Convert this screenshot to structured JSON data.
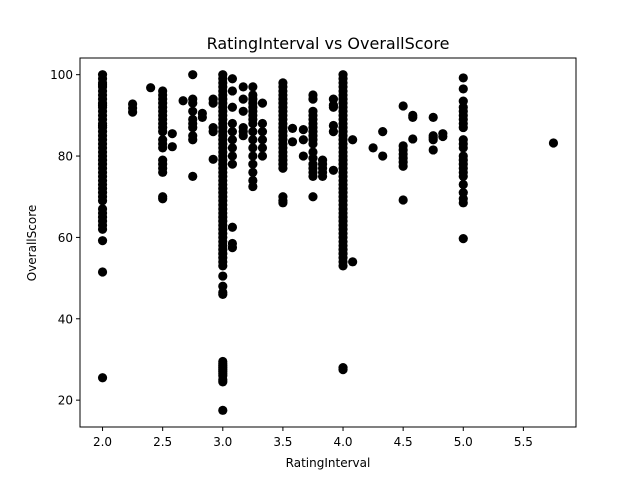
{
  "chart_data": {
    "type": "scatter",
    "title": "RatingInterval vs OverallScore",
    "xlabel": "RatingInterval",
    "ylabel": "OverallScore",
    "xlim": [
      1.8125,
      5.9375
    ],
    "ylim": [
      13.4,
      104.1
    ],
    "xticks": [
      2.0,
      2.5,
      3.0,
      3.5,
      4.0,
      4.5,
      5.0,
      5.5
    ],
    "xtick_labels": [
      "2.0",
      "2.5",
      "3.0",
      "3.5",
      "4.0",
      "4.5",
      "5.0",
      "5.5"
    ],
    "yticks": [
      20,
      40,
      60,
      80,
      100
    ],
    "ytick_labels": [
      "20",
      "40",
      "60",
      "80",
      "100"
    ],
    "grid": false,
    "legend": "none",
    "marker_color": "#000000",
    "points": [
      [
        2.0,
        100
      ],
      [
        2.0,
        99
      ],
      [
        2.0,
        98
      ],
      [
        2.0,
        97.5
      ],
      [
        2.0,
        97
      ],
      [
        2.0,
        96
      ],
      [
        2.0,
        95
      ],
      [
        2.0,
        94
      ],
      [
        2.0,
        93
      ],
      [
        2.0,
        92.5
      ],
      [
        2.0,
        92
      ],
      [
        2.0,
        91
      ],
      [
        2.0,
        90
      ],
      [
        2.0,
        89
      ],
      [
        2.0,
        88
      ],
      [
        2.0,
        87.5
      ],
      [
        2.0,
        87
      ],
      [
        2.0,
        86
      ],
      [
        2.0,
        85
      ],
      [
        2.0,
        84
      ],
      [
        2.0,
        83
      ],
      [
        2.0,
        82
      ],
      [
        2.0,
        81
      ],
      [
        2.0,
        80
      ],
      [
        2.0,
        79
      ],
      [
        2.0,
        78
      ],
      [
        2.0,
        77
      ],
      [
        2.0,
        76
      ],
      [
        2.0,
        75
      ],
      [
        2.0,
        74
      ],
      [
        2.0,
        73
      ],
      [
        2.0,
        72
      ],
      [
        2.0,
        71
      ],
      [
        2.0,
        70
      ],
      [
        2.0,
        69
      ],
      [
        2.0,
        67
      ],
      [
        2.0,
        66
      ],
      [
        2.0,
        65
      ],
      [
        2.0,
        64
      ],
      [
        2.0,
        63
      ],
      [
        2.0,
        62
      ],
      [
        2.0,
        59.2
      ],
      [
        2.0,
        51.5
      ],
      [
        2.0,
        25.5
      ],
      [
        2.25,
        92.8
      ],
      [
        2.25,
        91.8
      ],
      [
        2.25,
        90.8
      ],
      [
        2.4,
        96.8
      ],
      [
        2.5,
        96
      ],
      [
        2.5,
        95
      ],
      [
        2.5,
        94
      ],
      [
        2.5,
        93
      ],
      [
        2.5,
        92
      ],
      [
        2.5,
        91
      ],
      [
        2.5,
        90
      ],
      [
        2.5,
        89
      ],
      [
        2.5,
        88
      ],
      [
        2.5,
        87
      ],
      [
        2.5,
        86
      ],
      [
        2.5,
        84
      ],
      [
        2.5,
        83
      ],
      [
        2.5,
        82
      ],
      [
        2.5,
        79
      ],
      [
        2.5,
        78
      ],
      [
        2.5,
        77
      ],
      [
        2.5,
        76
      ],
      [
        2.5,
        70
      ],
      [
        2.5,
        69.5
      ],
      [
        2.58,
        85.5
      ],
      [
        2.58,
        82.3
      ],
      [
        2.67,
        93.6
      ],
      [
        2.75,
        100
      ],
      [
        2.75,
        94
      ],
      [
        2.75,
        93
      ],
      [
        2.75,
        91
      ],
      [
        2.75,
        89
      ],
      [
        2.75,
        88
      ],
      [
        2.75,
        87
      ],
      [
        2.75,
        85
      ],
      [
        2.75,
        84
      ],
      [
        2.75,
        75
      ],
      [
        2.83,
        90.5
      ],
      [
        2.83,
        89.5
      ],
      [
        2.92,
        94
      ],
      [
        2.92,
        93
      ],
      [
        2.92,
        87
      ],
      [
        2.92,
        86
      ],
      [
        2.92,
        79.2
      ],
      [
        3.0,
        100
      ],
      [
        3.0,
        99
      ],
      [
        3.0,
        98
      ],
      [
        3.0,
        97
      ],
      [
        3.0,
        96
      ],
      [
        3.0,
        95
      ],
      [
        3.0,
        94
      ],
      [
        3.0,
        93
      ],
      [
        3.0,
        92
      ],
      [
        3.0,
        91
      ],
      [
        3.0,
        90
      ],
      [
        3.0,
        89
      ],
      [
        3.0,
        88
      ],
      [
        3.0,
        87
      ],
      [
        3.0,
        86
      ],
      [
        3.0,
        85
      ],
      [
        3.0,
        84
      ],
      [
        3.0,
        83
      ],
      [
        3.0,
        82
      ],
      [
        3.0,
        81
      ],
      [
        3.0,
        80
      ],
      [
        3.0,
        79
      ],
      [
        3.0,
        78
      ],
      [
        3.0,
        77
      ],
      [
        3.0,
        76
      ],
      [
        3.0,
        75
      ],
      [
        3.0,
        74
      ],
      [
        3.0,
        73
      ],
      [
        3.0,
        72
      ],
      [
        3.0,
        71
      ],
      [
        3.0,
        70
      ],
      [
        3.0,
        69
      ],
      [
        3.0,
        68
      ],
      [
        3.0,
        67
      ],
      [
        3.0,
        66
      ],
      [
        3.0,
        65
      ],
      [
        3.0,
        64
      ],
      [
        3.0,
        63
      ],
      [
        3.0,
        62
      ],
      [
        3.0,
        61
      ],
      [
        3.0,
        60
      ],
      [
        3.0,
        59
      ],
      [
        3.0,
        58
      ],
      [
        3.0,
        57
      ],
      [
        3.0,
        56
      ],
      [
        3.0,
        55
      ],
      [
        3.0,
        54
      ],
      [
        3.0,
        53
      ],
      [
        3.0,
        50.5
      ],
      [
        3.0,
        48
      ],
      [
        3.0,
        46.5
      ],
      [
        3.0,
        46
      ],
      [
        3.0,
        29.5
      ],
      [
        3.0,
        29
      ],
      [
        3.0,
        28.5
      ],
      [
        3.0,
        28
      ],
      [
        3.0,
        27.5
      ],
      [
        3.0,
        27
      ],
      [
        3.0,
        26.5
      ],
      [
        3.0,
        26
      ],
      [
        3.0,
        25
      ],
      [
        3.0,
        24.5
      ],
      [
        3.0,
        17.5
      ],
      [
        3.08,
        99
      ],
      [
        3.08,
        96
      ],
      [
        3.08,
        92
      ],
      [
        3.08,
        88
      ],
      [
        3.08,
        86
      ],
      [
        3.08,
        84
      ],
      [
        3.08,
        82
      ],
      [
        3.08,
        80
      ],
      [
        3.08,
        78
      ],
      [
        3.08,
        62.5
      ],
      [
        3.08,
        58.5
      ],
      [
        3.08,
        57.5
      ],
      [
        3.17,
        97
      ],
      [
        3.17,
        94
      ],
      [
        3.17,
        91
      ],
      [
        3.17,
        87
      ],
      [
        3.17,
        86
      ],
      [
        3.17,
        85
      ],
      [
        3.25,
        97
      ],
      [
        3.25,
        95
      ],
      [
        3.25,
        94
      ],
      [
        3.25,
        93
      ],
      [
        3.25,
        92
      ],
      [
        3.25,
        91
      ],
      [
        3.25,
        90
      ],
      [
        3.25,
        89
      ],
      [
        3.25,
        88
      ],
      [
        3.25,
        86
      ],
      [
        3.25,
        84
      ],
      [
        3.25,
        82
      ],
      [
        3.25,
        80
      ],
      [
        3.25,
        78
      ],
      [
        3.25,
        76
      ],
      [
        3.25,
        74
      ],
      [
        3.25,
        72.5
      ],
      [
        3.33,
        93
      ],
      [
        3.33,
        88
      ],
      [
        3.33,
        86
      ],
      [
        3.33,
        84
      ],
      [
        3.33,
        82
      ],
      [
        3.33,
        80
      ],
      [
        3.5,
        98
      ],
      [
        3.5,
        97
      ],
      [
        3.5,
        96
      ],
      [
        3.5,
        95
      ],
      [
        3.5,
        94
      ],
      [
        3.5,
        93
      ],
      [
        3.5,
        92
      ],
      [
        3.5,
        91
      ],
      [
        3.5,
        90
      ],
      [
        3.5,
        89
      ],
      [
        3.5,
        88
      ],
      [
        3.5,
        87
      ],
      [
        3.5,
        86
      ],
      [
        3.5,
        85
      ],
      [
        3.5,
        84
      ],
      [
        3.5,
        83
      ],
      [
        3.5,
        82
      ],
      [
        3.5,
        81
      ],
      [
        3.5,
        80
      ],
      [
        3.5,
        79
      ],
      [
        3.5,
        78
      ],
      [
        3.5,
        77
      ],
      [
        3.5,
        70
      ],
      [
        3.5,
        69
      ],
      [
        3.5,
        68.5
      ],
      [
        3.58,
        86.8
      ],
      [
        3.58,
        83.5
      ],
      [
        3.67,
        86.5
      ],
      [
        3.67,
        84
      ],
      [
        3.67,
        80
      ],
      [
        3.75,
        95
      ],
      [
        3.75,
        94
      ],
      [
        3.75,
        91
      ],
      [
        3.75,
        90
      ],
      [
        3.75,
        89
      ],
      [
        3.75,
        88
      ],
      [
        3.75,
        87
      ],
      [
        3.75,
        86
      ],
      [
        3.75,
        85
      ],
      [
        3.75,
        84
      ],
      [
        3.75,
        83
      ],
      [
        3.75,
        81
      ],
      [
        3.75,
        79.5
      ],
      [
        3.75,
        78
      ],
      [
        3.75,
        77
      ],
      [
        3.75,
        76
      ],
      [
        3.75,
        75
      ],
      [
        3.75,
        70
      ],
      [
        3.83,
        79
      ],
      [
        3.83,
        78
      ],
      [
        3.83,
        77
      ],
      [
        3.83,
        76
      ],
      [
        3.83,
        75
      ],
      [
        3.92,
        94
      ],
      [
        3.92,
        92.5
      ],
      [
        3.92,
        92
      ],
      [
        3.92,
        87.5
      ],
      [
        3.92,
        86
      ],
      [
        3.92,
        76.5
      ],
      [
        4.0,
        100
      ],
      [
        4.0,
        99
      ],
      [
        4.0,
        98
      ],
      [
        4.0,
        97
      ],
      [
        4.0,
        96
      ],
      [
        4.0,
        95
      ],
      [
        4.0,
        94
      ],
      [
        4.0,
        93
      ],
      [
        4.0,
        92
      ],
      [
        4.0,
        91
      ],
      [
        4.0,
        90
      ],
      [
        4.0,
        89
      ],
      [
        4.0,
        88
      ],
      [
        4.0,
        87
      ],
      [
        4.0,
        86
      ],
      [
        4.0,
        85
      ],
      [
        4.0,
        84
      ],
      [
        4.0,
        83
      ],
      [
        4.0,
        82
      ],
      [
        4.0,
        81
      ],
      [
        4.0,
        80
      ],
      [
        4.0,
        79
      ],
      [
        4.0,
        78
      ],
      [
        4.0,
        77
      ],
      [
        4.0,
        76
      ],
      [
        4.0,
        75
      ],
      [
        4.0,
        74
      ],
      [
        4.0,
        73
      ],
      [
        4.0,
        72
      ],
      [
        4.0,
        71
      ],
      [
        4.0,
        70
      ],
      [
        4.0,
        69
      ],
      [
        4.0,
        68
      ],
      [
        4.0,
        67
      ],
      [
        4.0,
        66
      ],
      [
        4.0,
        65
      ],
      [
        4.0,
        64
      ],
      [
        4.0,
        63
      ],
      [
        4.0,
        62
      ],
      [
        4.0,
        61
      ],
      [
        4.0,
        60
      ],
      [
        4.0,
        59
      ],
      [
        4.0,
        58
      ],
      [
        4.0,
        57
      ],
      [
        4.0,
        56
      ],
      [
        4.0,
        55
      ],
      [
        4.0,
        54
      ],
      [
        4.0,
        53
      ],
      [
        4.0,
        28
      ],
      [
        4.0,
        27.5
      ],
      [
        4.08,
        84
      ],
      [
        4.08,
        54
      ],
      [
        4.25,
        82
      ],
      [
        4.33,
        86
      ],
      [
        4.33,
        80
      ],
      [
        4.5,
        92.3
      ],
      [
        4.5,
        82.5
      ],
      [
        4.5,
        81.5
      ],
      [
        4.5,
        80.5
      ],
      [
        4.5,
        79.5
      ],
      [
        4.5,
        78.5
      ],
      [
        4.5,
        77.5
      ],
      [
        4.5,
        69.2
      ],
      [
        4.58,
        90
      ],
      [
        4.58,
        89.5
      ],
      [
        4.58,
        84.2
      ],
      [
        4.75,
        89.5
      ],
      [
        4.75,
        85
      ],
      [
        4.75,
        84.5
      ],
      [
        4.75,
        84
      ],
      [
        4.75,
        81.5
      ],
      [
        4.83,
        85.5
      ],
      [
        4.83,
        84.8
      ],
      [
        5.0,
        99.2
      ],
      [
        5.0,
        96.5
      ],
      [
        5.0,
        93.5
      ],
      [
        5.0,
        92
      ],
      [
        5.0,
        91
      ],
      [
        5.0,
        90
      ],
      [
        5.0,
        89
      ],
      [
        5.0,
        88
      ],
      [
        5.0,
        87
      ],
      [
        5.0,
        84
      ],
      [
        5.0,
        83
      ],
      [
        5.0,
        82
      ],
      [
        5.0,
        80
      ],
      [
        5.0,
        79
      ],
      [
        5.0,
        78
      ],
      [
        5.0,
        77
      ],
      [
        5.0,
        76
      ],
      [
        5.0,
        75
      ],
      [
        5.0,
        73
      ],
      [
        5.0,
        71
      ],
      [
        5.0,
        69.5
      ],
      [
        5.0,
        68.5
      ],
      [
        5.0,
        59.7
      ],
      [
        5.75,
        83.2
      ]
    ]
  }
}
